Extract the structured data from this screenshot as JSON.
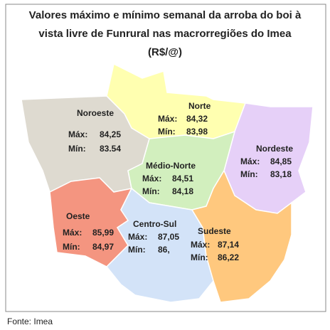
{
  "title": [
    "Valores máximo e mínimo semanal da arroba do boi à",
    "vista livre de Funrural nas macrorregiões do Imea",
    "(R$/@)"
  ],
  "max_label": "Máx:",
  "min_label": "Mín:",
  "regions": [
    {
      "name": "Noroeste",
      "max": "84,25",
      "min": "83.54"
    },
    {
      "name": "Norte",
      "max": "84,32",
      "min": "83,98"
    },
    {
      "name": "Nordeste",
      "max": "84,85",
      "min": "83,18"
    },
    {
      "name": "Médio-Norte",
      "max": "84,51",
      "min": "84,18"
    },
    {
      "name": "Oeste",
      "max": "85,99",
      "min": "84,97"
    },
    {
      "name": "Centro-Sul",
      "max": "87,05",
      "min": "86,"
    },
    {
      "name": "Sudeste",
      "max": "87,14",
      "min": "86,22"
    }
  ],
  "source": "Fonte: Imea"
}
